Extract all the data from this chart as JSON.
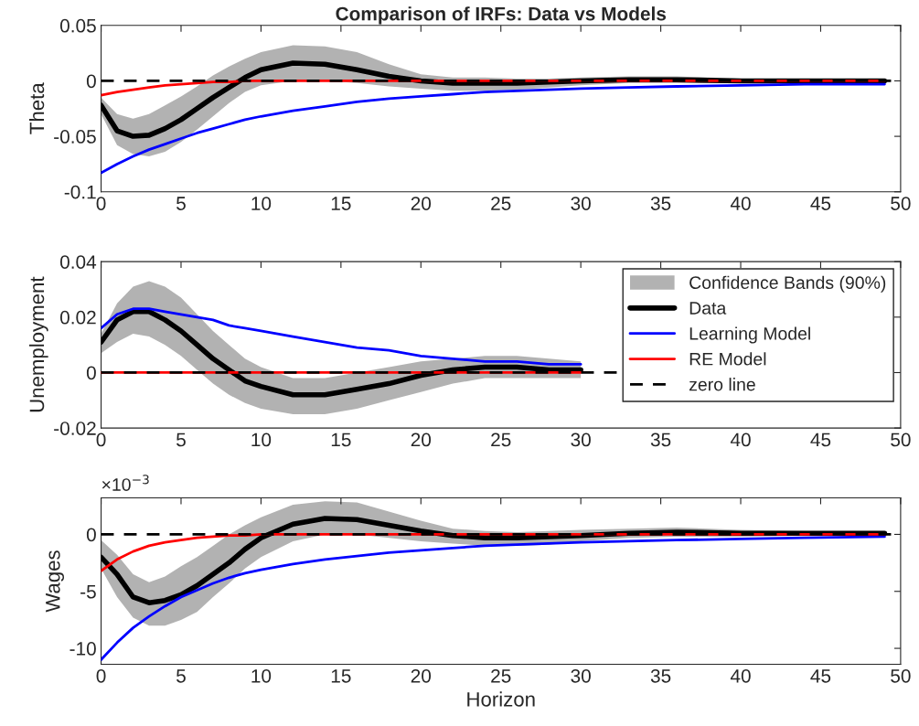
{
  "chart_data": [
    {
      "type": "line",
      "title": "Comparison of IRFs: Data vs Models",
      "ylabel": "Theta",
      "x": [
        0,
        1,
        2,
        3,
        4,
        5,
        6,
        7,
        8,
        9,
        10,
        12,
        14,
        16,
        18,
        20,
        22,
        24,
        26,
        28,
        30,
        33,
        36,
        40,
        44,
        49
      ],
      "xlim": [
        0,
        50
      ],
      "xticks": [
        0,
        5,
        10,
        15,
        20,
        25,
        30,
        35,
        40,
        45,
        50
      ],
      "ylim": [
        -0.1,
        0.05
      ],
      "yticks": [
        -0.1,
        -0.05,
        0,
        0.05
      ],
      "grid": false,
      "legend": false,
      "series": [
        {
          "color": "#000000",
          "values": [
            -0.022,
            -0.045,
            -0.05,
            -0.049,
            -0.043,
            -0.035,
            -0.025,
            -0.015,
            -0.006,
            0.003,
            0.01,
            0.016,
            0.015,
            0.01,
            0.004,
            0.0,
            -0.002,
            -0.002,
            -0.002,
            -0.001,
            0.0,
            0.001,
            0.001,
            0.0,
            0.0,
            0.0
          ],
          "lower": [
            -0.03,
            -0.058,
            -0.066,
            -0.068,
            -0.064,
            -0.055,
            -0.044,
            -0.032,
            -0.02,
            -0.01,
            -0.004,
            0.0,
            0.0,
            -0.002,
            -0.005,
            -0.007,
            -0.009,
            -0.009,
            -0.008,
            -0.006,
            -0.004,
            -0.002,
            -0.002,
            -0.002,
            -0.001,
            -0.001
          ],
          "upper": [
            -0.015,
            -0.03,
            -0.034,
            -0.03,
            -0.022,
            -0.014,
            -0.005,
            0.005,
            0.013,
            0.02,
            0.026,
            0.032,
            0.031,
            0.026,
            0.015,
            0.006,
            0.003,
            0.003,
            0.002,
            0.002,
            0.003,
            0.004,
            0.004,
            0.002,
            0.001,
            0.001
          ]
        },
        {
          "color": "#0000ff",
          "values": [
            -0.083,
            -0.075,
            -0.068,
            -0.062,
            -0.057,
            -0.052,
            -0.047,
            -0.043,
            -0.039,
            -0.035,
            -0.032,
            -0.027,
            -0.023,
            -0.019,
            -0.016,
            -0.014,
            -0.012,
            -0.01,
            -0.009,
            -0.008,
            -0.007,
            -0.006,
            -0.005,
            -0.004,
            -0.003,
            -0.003
          ]
        },
        {
          "color": "#ff0000",
          "values": [
            -0.013,
            -0.01,
            -0.008,
            -0.006,
            -0.004,
            -0.003,
            -0.002,
            -0.001,
            -0.001,
            0.0,
            0.0,
            0.0,
            0.0,
            0.0,
            0.0,
            0.0,
            0.0,
            0.0,
            0.0,
            0.0,
            0.0,
            0.0,
            0.0,
            0.0,
            0.0,
            0.0
          ]
        }
      ],
      "ref_lines": [
        {
          "axis": "y",
          "value": 0,
          "color": "#000000",
          "line_style": "dashed"
        }
      ]
    },
    {
      "type": "line",
      "ylabel": "Unemployment",
      "annotations": [
        "Confidence Bands (90%)"
      ],
      "x": [
        0,
        1,
        2,
        3,
        4,
        5,
        6,
        7,
        8,
        9,
        10,
        12,
        14,
        16,
        18,
        20,
        22,
        24,
        26,
        28,
        30
      ],
      "xlim": [
        0,
        50
      ],
      "xticks": [
        0,
        5,
        10,
        15,
        20,
        25,
        30,
        35,
        40,
        45,
        50
      ],
      "ylim": [
        -0.02,
        0.04
      ],
      "yticks": [
        -0.02,
        0,
        0.02,
        0.04
      ],
      "grid": false,
      "legend": "top right",
      "series": [
        {
          "name": "Data",
          "color": "#000000",
          "values": [
            0.011,
            0.019,
            0.022,
            0.022,
            0.019,
            0.015,
            0.01,
            0.005,
            0.001,
            -0.003,
            -0.005,
            -0.008,
            -0.008,
            -0.006,
            -0.004,
            -0.001,
            0.001,
            0.002,
            0.002,
            0.001,
            0.001
          ],
          "lower": [
            0.007,
            0.011,
            0.014,
            0.013,
            0.01,
            0.006,
            0.001,
            -0.004,
            -0.008,
            -0.011,
            -0.013,
            -0.015,
            -0.015,
            -0.013,
            -0.01,
            -0.007,
            -0.004,
            -0.002,
            -0.002,
            -0.002,
            -0.002
          ],
          "upper": [
            0.014,
            0.025,
            0.031,
            0.033,
            0.031,
            0.027,
            0.021,
            0.015,
            0.01,
            0.005,
            0.002,
            -0.002,
            -0.002,
            0.0,
            0.002,
            0.004,
            0.005,
            0.006,
            0.006,
            0.005,
            0.004
          ]
        },
        {
          "name": "Learning Model",
          "color": "#0000ff",
          "values": [
            0.016,
            0.021,
            0.023,
            0.023,
            0.022,
            0.021,
            0.02,
            0.019,
            0.017,
            0.016,
            0.015,
            0.013,
            0.011,
            0.009,
            0.008,
            0.006,
            0.005,
            0.004,
            0.004,
            0.003,
            0.003
          ]
        },
        {
          "name": "RE Model",
          "color": "#ff0000",
          "values": [
            0.0,
            0.0,
            0.0,
            0.0,
            0.0,
            0.0,
            0.0,
            0.0,
            0.0,
            0.0,
            0.0,
            0.0,
            0.0,
            0.0,
            0.0,
            0.0,
            0.0,
            0.0,
            0.0,
            0.0,
            0.0
          ]
        }
      ],
      "ref_lines": [
        {
          "axis": "y",
          "value": 0,
          "label": "zero line",
          "color": "#000000",
          "line_style": "dashed"
        }
      ]
    },
    {
      "type": "line",
      "ylabel": "Wages",
      "xlabel": "Horizon",
      "annotations": [
        "×10$^{−3}$"
      ],
      "x": [
        0,
        1,
        2,
        3,
        4,
        5,
        6,
        7,
        8,
        9,
        10,
        12,
        14,
        16,
        18,
        20,
        22,
        24,
        26,
        28,
        30,
        33,
        36,
        40,
        44,
        49
      ],
      "xlim": [
        0,
        50
      ],
      "xticks": [
        0,
        5,
        10,
        15,
        20,
        25,
        30,
        35,
        40,
        45,
        50
      ],
      "ylim": [
        -11.4,
        3.2
      ],
      "yticks": [
        -10,
        -5,
        0
      ],
      "grid": false,
      "legend": false,
      "series": [
        {
          "color": "#000000",
          "values": [
            -2,
            -3.5,
            -5.5,
            -6,
            -5.8,
            -5.3,
            -4.5,
            -3.5,
            -2.5,
            -1.3,
            -0.3,
            0.9,
            1.4,
            1.3,
            0.8,
            0.3,
            -0.1,
            -0.3,
            -0.3,
            -0.2,
            -0.1,
            0.1,
            0.2,
            0.1,
            0.1,
            0.1
          ],
          "lower": [
            -3,
            -5.5,
            -7.3,
            -8,
            -8,
            -7.5,
            -6.8,
            -5.5,
            -4.3,
            -3,
            -2,
            -0.6,
            0.0,
            0.0,
            -0.3,
            -0.6,
            -0.8,
            -1,
            -1,
            -0.9,
            -0.6,
            -0.3,
            -0.2,
            -0.2,
            -0.1,
            -0.1
          ],
          "upper": [
            -0.5,
            -1.8,
            -3.5,
            -4.2,
            -3.7,
            -2.8,
            -2,
            -1,
            0.0,
            0.8,
            1.5,
            2.6,
            2.9,
            2.8,
            2,
            1.2,
            0.5,
            0.3,
            0.2,
            0.3,
            0.4,
            0.5,
            0.6,
            0.4,
            0.3,
            0.3
          ]
        },
        {
          "color": "#0000ff",
          "values": [
            -11,
            -9.5,
            -8.2,
            -7.2,
            -6.3,
            -5.5,
            -4.9,
            -4.3,
            -3.8,
            -3.4,
            -3.1,
            -2.6,
            -2.2,
            -1.9,
            -1.6,
            -1.4,
            -1.2,
            -1,
            -0.9,
            -0.8,
            -0.7,
            -0.6,
            -0.5,
            -0.4,
            -0.3,
            -0.2
          ]
        },
        {
          "color": "#ff0000",
          "values": [
            -3.2,
            -2.2,
            -1.5,
            -1,
            -0.7,
            -0.5,
            -0.3,
            -0.2,
            -0.1,
            -0.1,
            0.0,
            0.0,
            0.0,
            0.0,
            0.0,
            0.0,
            0.0,
            0.0,
            0.0,
            0.0,
            0.0,
            0.0,
            0.0,
            0.0,
            0.0,
            0.0
          ]
        }
      ],
      "ref_lines": [
        {
          "axis": "y",
          "value": 0,
          "color": "#000000",
          "line_style": "dashed"
        }
      ]
    }
  ]
}
